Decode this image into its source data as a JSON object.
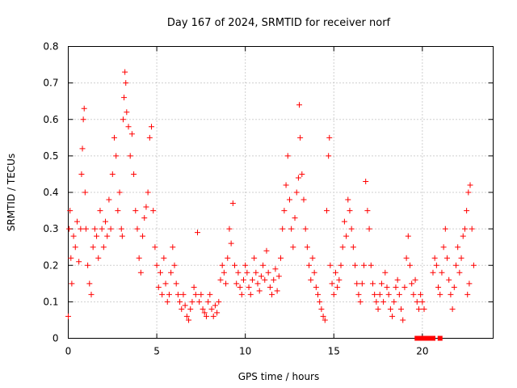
{
  "chart_data": {
    "type": "scatter",
    "title": "Day 167 of 2024, SRMTID for receiver norf",
    "xlabel": "GPS time / hours",
    "ylabel": "SRMTID / TECUs",
    "xlim": [
      0,
      24
    ],
    "ylim": [
      0,
      0.8
    ],
    "x_ticks": [
      0,
      5,
      10,
      15,
      20
    ],
    "x_tick_labels": [
      "0",
      "5",
      "10",
      "15",
      "20"
    ],
    "y_ticks": [
      0,
      0.1,
      0.2,
      0.3,
      0.4,
      0.5,
      0.6,
      0.7,
      0.8
    ],
    "y_tick_labels": [
      "0",
      "0.1",
      "0.2",
      "0.3",
      "0.4",
      "0.5",
      "0.6",
      "0.7",
      "0.8"
    ],
    "grid": true,
    "marker": "+",
    "color": "#ff0000",
    "zero_markers": [
      {
        "x": 19.7,
        "y": 0
      },
      {
        "x": 19.8,
        "y": 0
      },
      {
        "x": 20.0,
        "y": 0
      },
      {
        "x": 20.1,
        "y": 0
      },
      {
        "x": 20.2,
        "y": 0
      },
      {
        "x": 20.3,
        "y": 0
      },
      {
        "x": 20.4,
        "y": 0
      },
      {
        "x": 20.5,
        "y": 0
      },
      {
        "x": 20.6,
        "y": 0
      },
      {
        "x": 21.0,
        "y": 0
      }
    ],
    "series": [
      {
        "name": "SRMTID",
        "points": [
          [
            0.0,
            0.06
          ],
          [
            0.05,
            0.3
          ],
          [
            0.1,
            0.35
          ],
          [
            0.15,
            0.22
          ],
          [
            0.2,
            0.15
          ],
          [
            0.3,
            0.28
          ],
          [
            0.4,
            0.25
          ],
          [
            0.5,
            0.32
          ],
          [
            0.6,
            0.21
          ],
          [
            0.7,
            0.3
          ],
          [
            0.75,
            0.45
          ],
          [
            0.8,
            0.52
          ],
          [
            0.85,
            0.6
          ],
          [
            0.9,
            0.63
          ],
          [
            0.95,
            0.4
          ],
          [
            1.0,
            0.3
          ],
          [
            1.1,
            0.2
          ],
          [
            1.2,
            0.15
          ],
          [
            1.3,
            0.12
          ],
          [
            1.4,
            0.25
          ],
          [
            1.5,
            0.3
          ],
          [
            1.6,
            0.28
          ],
          [
            1.7,
            0.22
          ],
          [
            1.8,
            0.35
          ],
          [
            1.9,
            0.3
          ],
          [
            2.0,
            0.25
          ],
          [
            2.1,
            0.32
          ],
          [
            2.2,
            0.28
          ],
          [
            2.3,
            0.38
          ],
          [
            2.4,
            0.3
          ],
          [
            2.5,
            0.45
          ],
          [
            2.6,
            0.55
          ],
          [
            2.7,
            0.5
          ],
          [
            2.8,
            0.35
          ],
          [
            2.9,
            0.4
          ],
          [
            3.0,
            0.3
          ],
          [
            3.05,
            0.28
          ],
          [
            3.1,
            0.6
          ],
          [
            3.15,
            0.66
          ],
          [
            3.2,
            0.73
          ],
          [
            3.25,
            0.7
          ],
          [
            3.3,
            0.62
          ],
          [
            3.4,
            0.58
          ],
          [
            3.5,
            0.5
          ],
          [
            3.6,
            0.56
          ],
          [
            3.7,
            0.45
          ],
          [
            3.8,
            0.35
          ],
          [
            3.9,
            0.3
          ],
          [
            4.0,
            0.22
          ],
          [
            4.1,
            0.18
          ],
          [
            4.2,
            0.28
          ],
          [
            4.3,
            0.33
          ],
          [
            4.4,
            0.36
          ],
          [
            4.5,
            0.4
          ],
          [
            4.6,
            0.55
          ],
          [
            4.7,
            0.58
          ],
          [
            4.8,
            0.35
          ],
          [
            4.9,
            0.25
          ],
          [
            5.0,
            0.2
          ],
          [
            5.1,
            0.14
          ],
          [
            5.2,
            0.18
          ],
          [
            5.3,
            0.12
          ],
          [
            5.4,
            0.22
          ],
          [
            5.5,
            0.15
          ],
          [
            5.6,
            0.1
          ],
          [
            5.7,
            0.12
          ],
          [
            5.8,
            0.18
          ],
          [
            5.9,
            0.25
          ],
          [
            6.0,
            0.2
          ],
          [
            6.1,
            0.15
          ],
          [
            6.2,
            0.12
          ],
          [
            6.3,
            0.1
          ],
          [
            6.4,
            0.08
          ],
          [
            6.5,
            0.12
          ],
          [
            6.6,
            0.09
          ],
          [
            6.7,
            0.06
          ],
          [
            6.8,
            0.05
          ],
          [
            6.9,
            0.08
          ],
          [
            7.0,
            0.1
          ],
          [
            7.1,
            0.14
          ],
          [
            7.2,
            0.12
          ],
          [
            7.3,
            0.29
          ],
          [
            7.4,
            0.1
          ],
          [
            7.5,
            0.12
          ],
          [
            7.6,
            0.08
          ],
          [
            7.7,
            0.07
          ],
          [
            7.8,
            0.06
          ],
          [
            7.9,
            0.1
          ],
          [
            8.0,
            0.12
          ],
          [
            8.1,
            0.08
          ],
          [
            8.2,
            0.06
          ],
          [
            8.3,
            0.09
          ],
          [
            8.4,
            0.07
          ],
          [
            8.5,
            0.1
          ],
          [
            8.6,
            0.16
          ],
          [
            8.7,
            0.2
          ],
          [
            8.8,
            0.18
          ],
          [
            8.9,
            0.15
          ],
          [
            9.0,
            0.22
          ],
          [
            9.1,
            0.3
          ],
          [
            9.2,
            0.26
          ],
          [
            9.3,
            0.37
          ],
          [
            9.4,
            0.2
          ],
          [
            9.5,
            0.15
          ],
          [
            9.6,
            0.18
          ],
          [
            9.7,
            0.14
          ],
          [
            9.8,
            0.12
          ],
          [
            9.9,
            0.16
          ],
          [
            10.0,
            0.2
          ],
          [
            10.1,
            0.18
          ],
          [
            10.2,
            0.14
          ],
          [
            10.3,
            0.12
          ],
          [
            10.4,
            0.16
          ],
          [
            10.5,
            0.22
          ],
          [
            10.6,
            0.18
          ],
          [
            10.7,
            0.15
          ],
          [
            10.8,
            0.13
          ],
          [
            10.9,
            0.17
          ],
          [
            11.0,
            0.2
          ],
          [
            11.1,
            0.16
          ],
          [
            11.2,
            0.24
          ],
          [
            11.3,
            0.18
          ],
          [
            11.4,
            0.14
          ],
          [
            11.5,
            0.12
          ],
          [
            11.6,
            0.16
          ],
          [
            11.7,
            0.19
          ],
          [
            11.8,
            0.13
          ],
          [
            11.9,
            0.17
          ],
          [
            12.0,
            0.22
          ],
          [
            12.1,
            0.3
          ],
          [
            12.2,
            0.35
          ],
          [
            12.3,
            0.42
          ],
          [
            12.4,
            0.5
          ],
          [
            12.5,
            0.38
          ],
          [
            12.6,
            0.3
          ],
          [
            12.7,
            0.25
          ],
          [
            12.8,
            0.33
          ],
          [
            12.9,
            0.4
          ],
          [
            13.0,
            0.44
          ],
          [
            13.05,
            0.64
          ],
          [
            13.1,
            0.55
          ],
          [
            13.2,
            0.45
          ],
          [
            13.3,
            0.38
          ],
          [
            13.4,
            0.3
          ],
          [
            13.5,
            0.25
          ],
          [
            13.6,
            0.2
          ],
          [
            13.7,
            0.16
          ],
          [
            13.8,
            0.22
          ],
          [
            13.9,
            0.18
          ],
          [
            14.0,
            0.14
          ],
          [
            14.1,
            0.12
          ],
          [
            14.2,
            0.1
          ],
          [
            14.3,
            0.08
          ],
          [
            14.4,
            0.06
          ],
          [
            14.5,
            0.05
          ],
          [
            14.6,
            0.35
          ],
          [
            14.7,
            0.5
          ],
          [
            14.75,
            0.55
          ],
          [
            14.8,
            0.2
          ],
          [
            14.9,
            0.15
          ],
          [
            15.0,
            0.12
          ],
          [
            15.1,
            0.18
          ],
          [
            15.2,
            0.14
          ],
          [
            15.3,
            0.16
          ],
          [
            15.4,
            0.2
          ],
          [
            15.5,
            0.25
          ],
          [
            15.6,
            0.32
          ],
          [
            15.7,
            0.28
          ],
          [
            15.8,
            0.38
          ],
          [
            15.9,
            0.35
          ],
          [
            16.0,
            0.3
          ],
          [
            16.1,
            0.25
          ],
          [
            16.2,
            0.2
          ],
          [
            16.3,
            0.15
          ],
          [
            16.4,
            0.12
          ],
          [
            16.5,
            0.1
          ],
          [
            16.6,
            0.15
          ],
          [
            16.7,
            0.2
          ],
          [
            16.8,
            0.43
          ],
          [
            16.9,
            0.35
          ],
          [
            17.0,
            0.3
          ],
          [
            17.1,
            0.2
          ],
          [
            17.2,
            0.15
          ],
          [
            17.3,
            0.12
          ],
          [
            17.4,
            0.1
          ],
          [
            17.5,
            0.08
          ],
          [
            17.6,
            0.12
          ],
          [
            17.7,
            0.15
          ],
          [
            17.8,
            0.1
          ],
          [
            17.9,
            0.18
          ],
          [
            18.0,
            0.14
          ],
          [
            18.1,
            0.12
          ],
          [
            18.2,
            0.08
          ],
          [
            18.3,
            0.06
          ],
          [
            18.4,
            0.1
          ],
          [
            18.5,
            0.14
          ],
          [
            18.6,
            0.16
          ],
          [
            18.7,
            0.12
          ],
          [
            18.8,
            0.08
          ],
          [
            18.9,
            0.05
          ],
          [
            19.0,
            0.14
          ],
          [
            19.1,
            0.22
          ],
          [
            19.2,
            0.28
          ],
          [
            19.3,
            0.2
          ],
          [
            19.4,
            0.15
          ],
          [
            19.5,
            0.12
          ],
          [
            19.6,
            0.16
          ],
          [
            19.7,
            0.1
          ],
          [
            19.8,
            0.08
          ],
          [
            19.9,
            0.12
          ],
          [
            20.0,
            0.1
          ],
          [
            20.1,
            0.08
          ],
          [
            20.6,
            0.18
          ],
          [
            20.7,
            0.22
          ],
          [
            20.8,
            0.2
          ],
          [
            20.9,
            0.14
          ],
          [
            21.0,
            0.12
          ],
          [
            21.1,
            0.18
          ],
          [
            21.2,
            0.25
          ],
          [
            21.3,
            0.3
          ],
          [
            21.4,
            0.22
          ],
          [
            21.5,
            0.16
          ],
          [
            21.6,
            0.12
          ],
          [
            21.7,
            0.08
          ],
          [
            21.8,
            0.14
          ],
          [
            21.9,
            0.2
          ],
          [
            22.0,
            0.25
          ],
          [
            22.1,
            0.18
          ],
          [
            22.2,
            0.22
          ],
          [
            22.3,
            0.28
          ],
          [
            22.4,
            0.3
          ],
          [
            22.5,
            0.35
          ],
          [
            22.6,
            0.4
          ],
          [
            22.7,
            0.42
          ],
          [
            22.8,
            0.3
          ],
          [
            22.9,
            0.2
          ],
          [
            22.65,
            0.15
          ],
          [
            22.55,
            0.12
          ]
        ]
      }
    ]
  }
}
